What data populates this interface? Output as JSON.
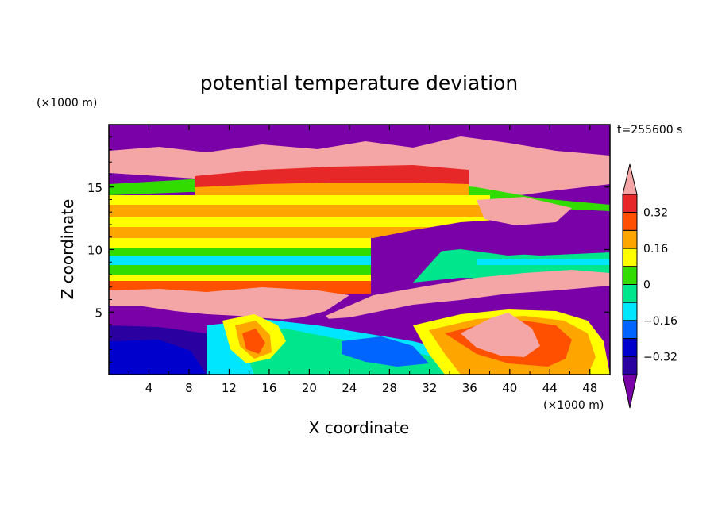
{
  "chart_data": {
    "type": "heatmap",
    "title": "potential temperature deviation",
    "xlabel": "X coordinate",
    "ylabel": "Z coordinate",
    "x_unit": "(×1000 m)",
    "y_unit": "(×1000 m)",
    "time_label": "t=255600 s",
    "xlim": [
      0,
      50
    ],
    "ylim": [
      0,
      20
    ],
    "x_ticks": [
      "4",
      "8",
      "12",
      "16",
      "20",
      "24",
      "28",
      "32",
      "36",
      "40",
      "44",
      "48"
    ],
    "y_ticks": [
      "5",
      "10",
      "15"
    ],
    "colorbar": {
      "levels": [
        -0.4,
        -0.32,
        -0.24,
        -0.16,
        -0.08,
        0,
        0.08,
        0.16,
        0.24,
        0.32,
        0.4
      ],
      "colors": [
        "#7a00a8",
        "#2b00a0",
        "#0000cc",
        "#0064ff",
        "#00e6ff",
        "#00e68c",
        "#32dc00",
        "#ffff00",
        "#ffa500",
        "#ff5000",
        "#e62828",
        "#f4a6a6"
      ],
      "tick_labels": [
        "0.32",
        "0.16",
        "0",
        "−0.16",
        "−0.32"
      ],
      "extend": "both"
    },
    "layers": [
      {
        "z_range": [
          0,
          2
        ],
        "description_value": -0.32
      },
      {
        "z_range": [
          4,
          7
        ],
        "description_value": 0.32
      },
      {
        "z_range": [
          7,
          12
        ],
        "description_value": 0.0
      },
      {
        "z_range": [
          12,
          16
        ],
        "description_value": 0.24
      },
      {
        "z_range": [
          16,
          20
        ],
        "description_value": -0.4
      }
    ]
  },
  "colors": {
    "background": "#ffffff",
    "frame": "#000000"
  }
}
